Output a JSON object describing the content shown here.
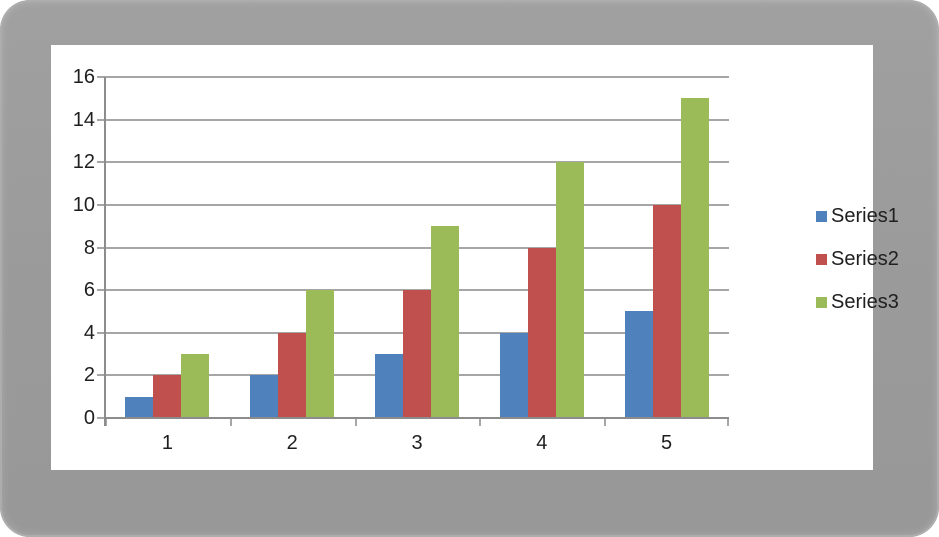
{
  "frame": {
    "background_color": "#9a9a9a",
    "panel_background_color": "#ffffff"
  },
  "chart_data": {
    "type": "bar",
    "title": "",
    "xlabel": "",
    "ylabel": "",
    "categories": [
      "1",
      "2",
      "3",
      "4",
      "5"
    ],
    "series": [
      {
        "name": "Series1",
        "color": "#4F81BD",
        "values": [
          1,
          2,
          3,
          4,
          5
        ]
      },
      {
        "name": "Series2",
        "color": "#C0504D",
        "values": [
          2,
          4,
          6,
          8,
          10
        ]
      },
      {
        "name": "Series3",
        "color": "#9BBB59",
        "values": [
          3,
          6,
          9,
          12,
          15
        ]
      }
    ],
    "ylim": [
      0,
      16
    ],
    "ytick_step": 2,
    "ytick_labels": [
      "0",
      "2",
      "4",
      "6",
      "8",
      "10",
      "12",
      "14",
      "16"
    ],
    "grid": true,
    "legend_position": "right",
    "gridline_color": "#A6A6A6",
    "axis_color": "#8C8C8C",
    "tick_label_color": "#1f1f1f"
  }
}
